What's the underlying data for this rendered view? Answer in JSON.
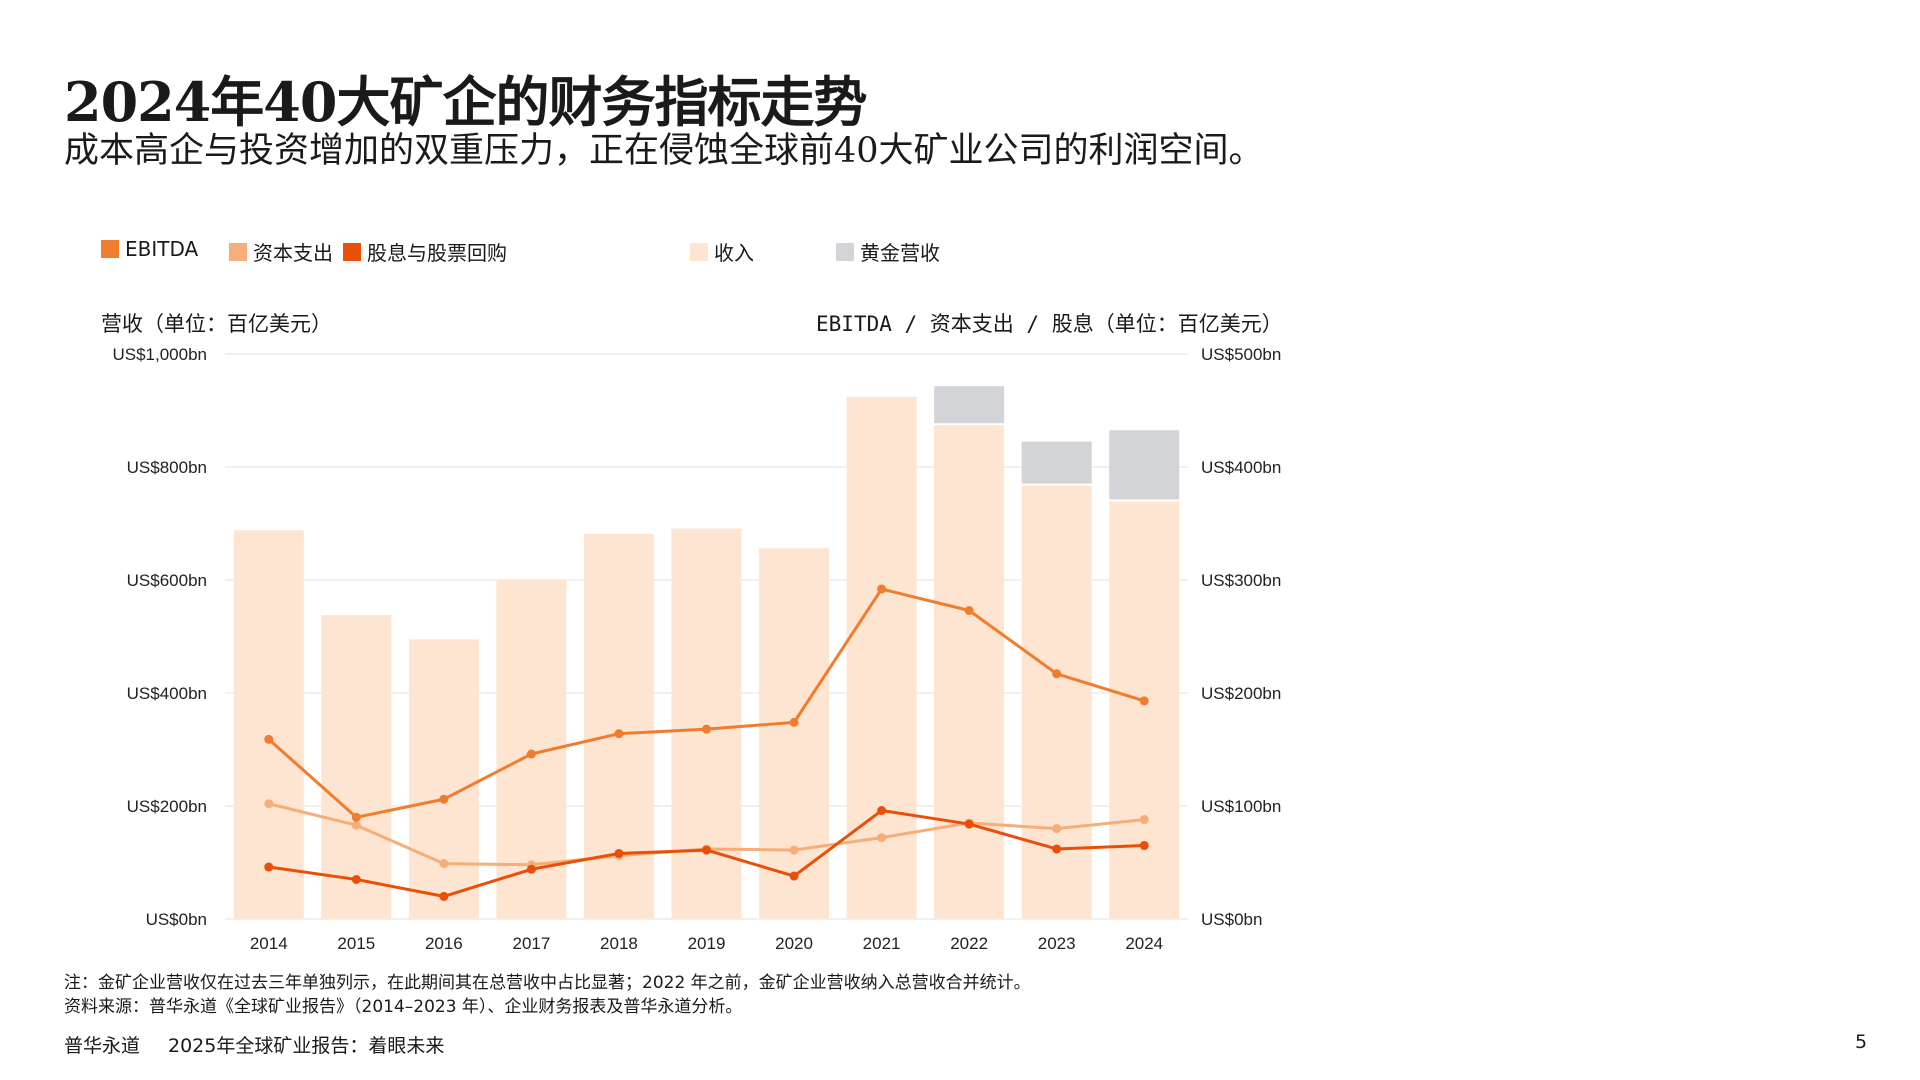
{
  "title": "2024年40大矿企的财务指标走势",
  "subtitle": "成本高企与投资增加的双重压力，正在侵蚀全球前40大矿业公司的利润空间。",
  "notes": {
    "note": "注：金矿企业营收仅在过去三年单独列示，在此期间其在总营收中占比显著；2022 年之前，金矿企业营收纳入总营收合并统计。",
    "source": "资料来源：普华永道《全球矿业报告》（2014–2023 年）、企业财务报表及普华永道分析。"
  },
  "footer": {
    "brand": "普华永道",
    "report": "2025年全球矿业报告：着眼未来",
    "page": "5"
  },
  "chart_data": {
    "type": "bar+line",
    "legend": [
      {
        "label": "EBITDA",
        "color": "#f07c2e"
      },
      {
        "label": "资本支出",
        "color": "#f6ad78"
      },
      {
        "label": "股息与股票回购",
        "color": "#ea4f08"
      },
      {
        "label": "收入",
        "color": "#fde5d2"
      },
      {
        "label": "黄金营收",
        "color": "#d2d4d7"
      }
    ],
    "legend_placement": "top",
    "left_axis": {
      "title": "营收（单位：百亿美元）",
      "range": [
        0,
        1000
      ],
      "ticks": [
        "US$0bn",
        "US$200bn",
        "US$400bn",
        "US$600bn",
        "US$800bn",
        "US$1,000bn"
      ],
      "tick_values": [
        0,
        200,
        400,
        600,
        800,
        1000
      ]
    },
    "right_axis": {
      "title": "EBITDA / 资本支出 / 股息（单位：百亿美元）",
      "range": [
        0,
        500
      ],
      "ticks": [
        "US$0bn",
        "US$100bn",
        "US$200bn",
        "US$300bn",
        "US$400bn",
        "US$500bn"
      ],
      "tick_values": [
        0,
        100,
        200,
        300,
        400,
        500
      ]
    },
    "grid": true,
    "categories": [
      "2014",
      "2015",
      "2016",
      "2017",
      "2018",
      "2019",
      "2020",
      "2021",
      "2022",
      "2023",
      "2024"
    ],
    "bars": [
      {
        "name": "收入",
        "axis": "left",
        "color": "#fde5d2",
        "values": [
          688,
          538,
          495,
          601,
          682,
          691,
          656,
          924,
          874,
          767,
          739
        ]
      },
      {
        "name": "黄金营收",
        "axis": "left",
        "color": "#d2d4d7",
        "stacked": true,
        "values": [
          0,
          0,
          0,
          0,
          0,
          0,
          0,
          0,
          69,
          78,
          126
        ]
      }
    ],
    "series": [
      {
        "name": "EBITDA",
        "axis": "right",
        "color": "#f07c2e",
        "values": [
          159,
          90,
          106,
          146,
          164,
          168,
          174,
          292,
          273,
          217,
          193
        ]
      },
      {
        "name": "资本支出",
        "axis": "right",
        "color": "#f6ad78",
        "values": [
          102,
          83,
          49,
          48,
          56,
          62,
          61,
          72,
          85,
          80,
          88
        ]
      },
      {
        "name": "股息与股票回购",
        "axis": "right",
        "color": "#ea4f08",
        "values": [
          46,
          35,
          20,
          44,
          58,
          61,
          38,
          96,
          84,
          62,
          65
        ]
      }
    ]
  }
}
